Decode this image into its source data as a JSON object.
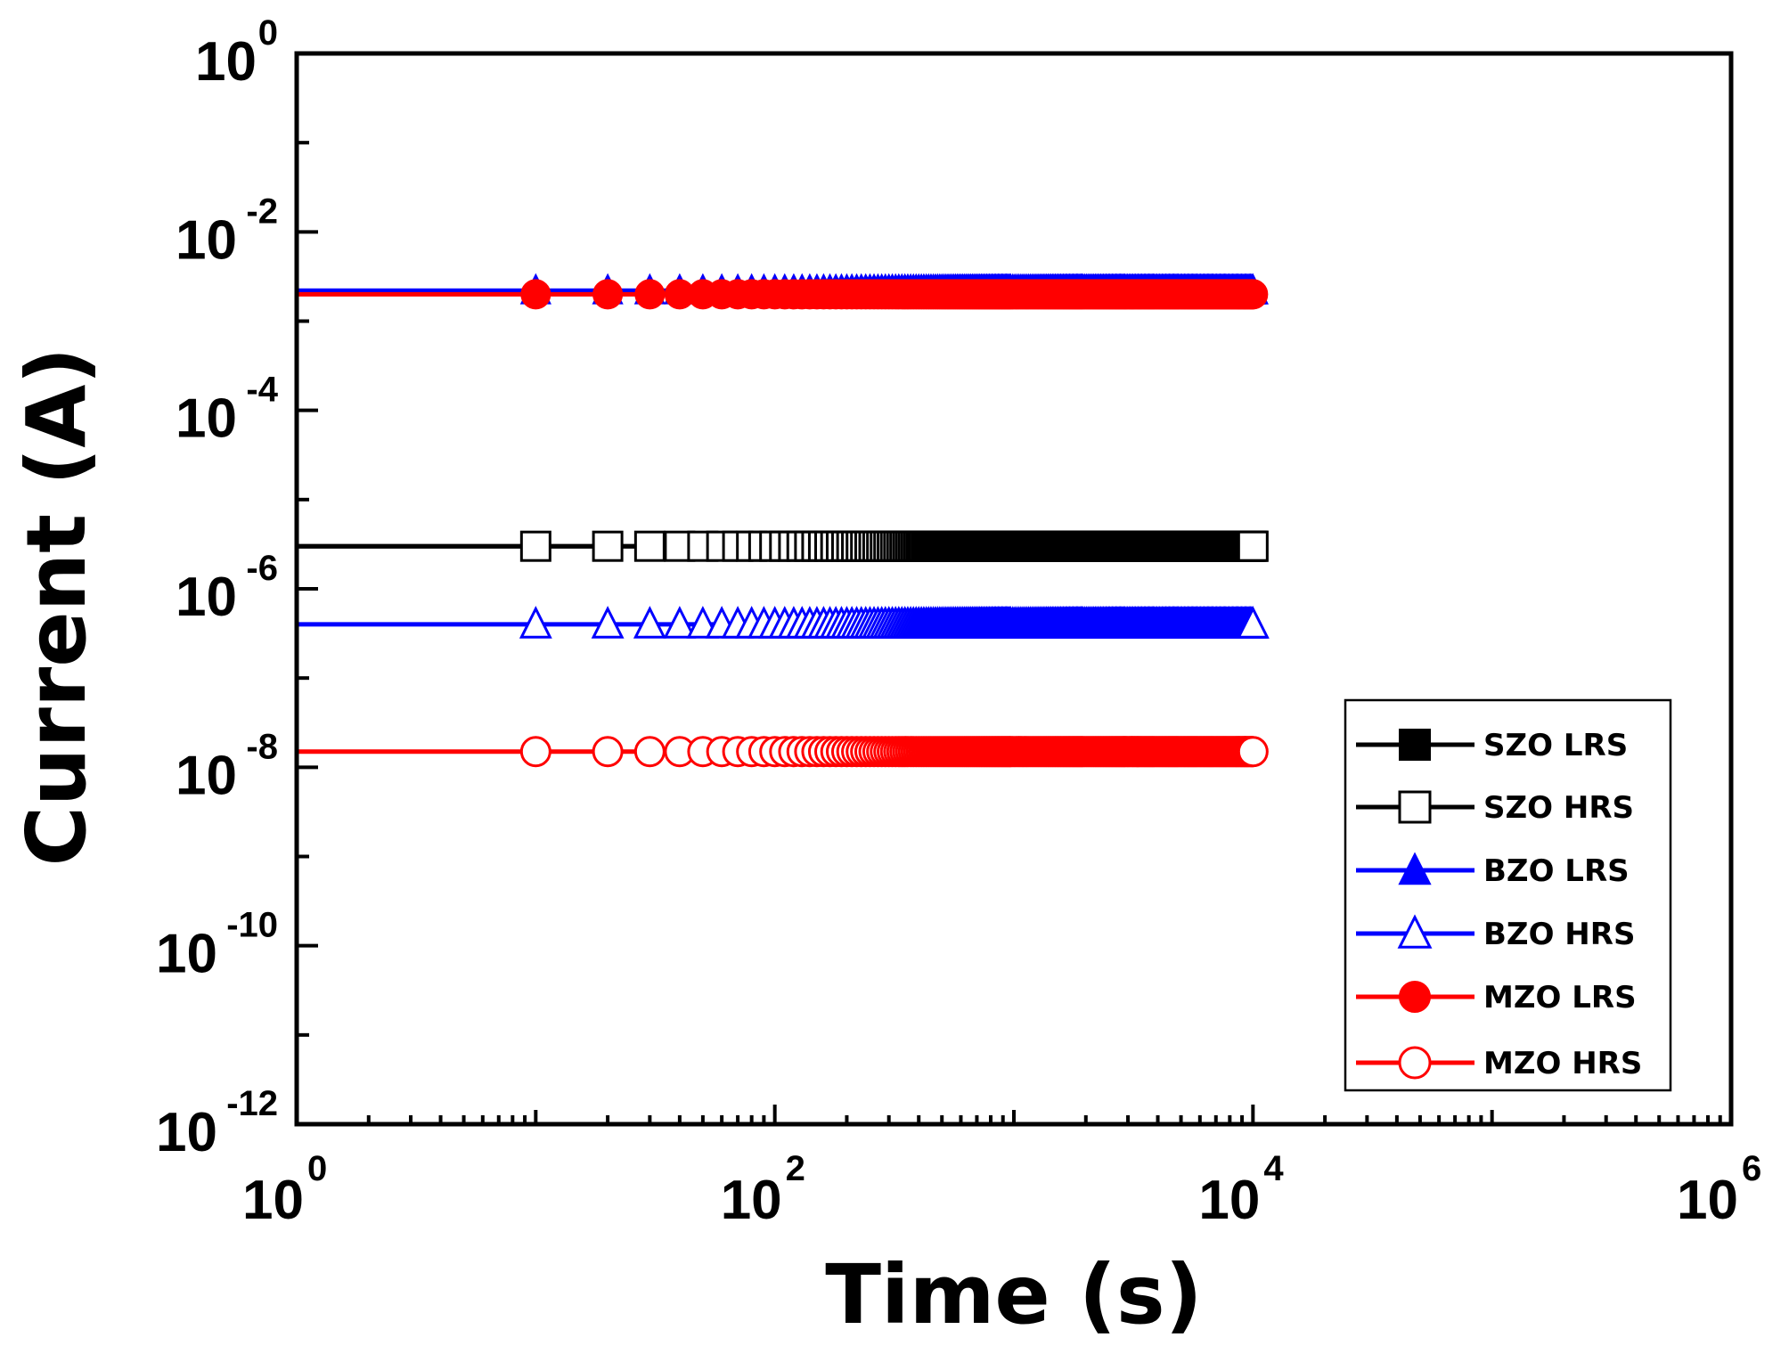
{
  "chart_data": {
    "type": "scatter",
    "title": "",
    "xlabel": "Time (s)",
    "ylabel": "Current (A)",
    "xscale": "log",
    "yscale": "log",
    "xlim": [
      1,
      1000000
    ],
    "ylim": [
      1e-12,
      1
    ],
    "x_ticks": [
      {
        "value": 1,
        "base": "10",
        "exp": "0"
      },
      {
        "value": 100,
        "base": "10",
        "exp": "2"
      },
      {
        "value": 10000,
        "base": "10",
        "exp": "4"
      },
      {
        "value": 1000000,
        "base": "10",
        "exp": "6"
      }
    ],
    "y_ticks": [
      {
        "value": 1,
        "base": "10",
        "exp": "0"
      },
      {
        "value": 0.01,
        "base": "10",
        "exp": "-2"
      },
      {
        "value": 0.0001,
        "base": "10",
        "exp": "-4"
      },
      {
        "value": 1e-06,
        "base": "10",
        "exp": "-6"
      },
      {
        "value": 1e-08,
        "base": "10",
        "exp": "-8"
      },
      {
        "value": 1e-10,
        "base": "10",
        "exp": "-10"
      },
      {
        "value": 1e-12,
        "base": "10",
        "exp": "-12"
      }
    ],
    "legend_position": "bottom-right",
    "series": [
      {
        "name": "SZO LRS",
        "color": "#000000",
        "marker": "square",
        "filled": true,
        "current": 3e-06,
        "x_start": 1,
        "x_end": 10000
      },
      {
        "name": "SZO HRS",
        "color": "#000000",
        "marker": "square",
        "filled": false,
        "current": 3e-06,
        "x_start": 1,
        "x_end": 10000
      },
      {
        "name": "BZO LRS",
        "color": "#0000ff",
        "marker": "triangle",
        "filled": true,
        "current": 0.0022,
        "x_start": 1,
        "x_end": 10000
      },
      {
        "name": "BZO HRS",
        "color": "#0000ff",
        "marker": "triangle",
        "filled": false,
        "current": 4e-07,
        "x_start": 1,
        "x_end": 10000
      },
      {
        "name": "MZO LRS",
        "color": "#ff0000",
        "marker": "circle",
        "filled": true,
        "current": 0.002,
        "x_start": 1,
        "x_end": 10000
      },
      {
        "name": "MZO HRS",
        "color": "#ff0000",
        "marker": "circle",
        "filled": false,
        "current": 1.5e-08,
        "x_start": 1,
        "x_end": 10000
      }
    ]
  }
}
